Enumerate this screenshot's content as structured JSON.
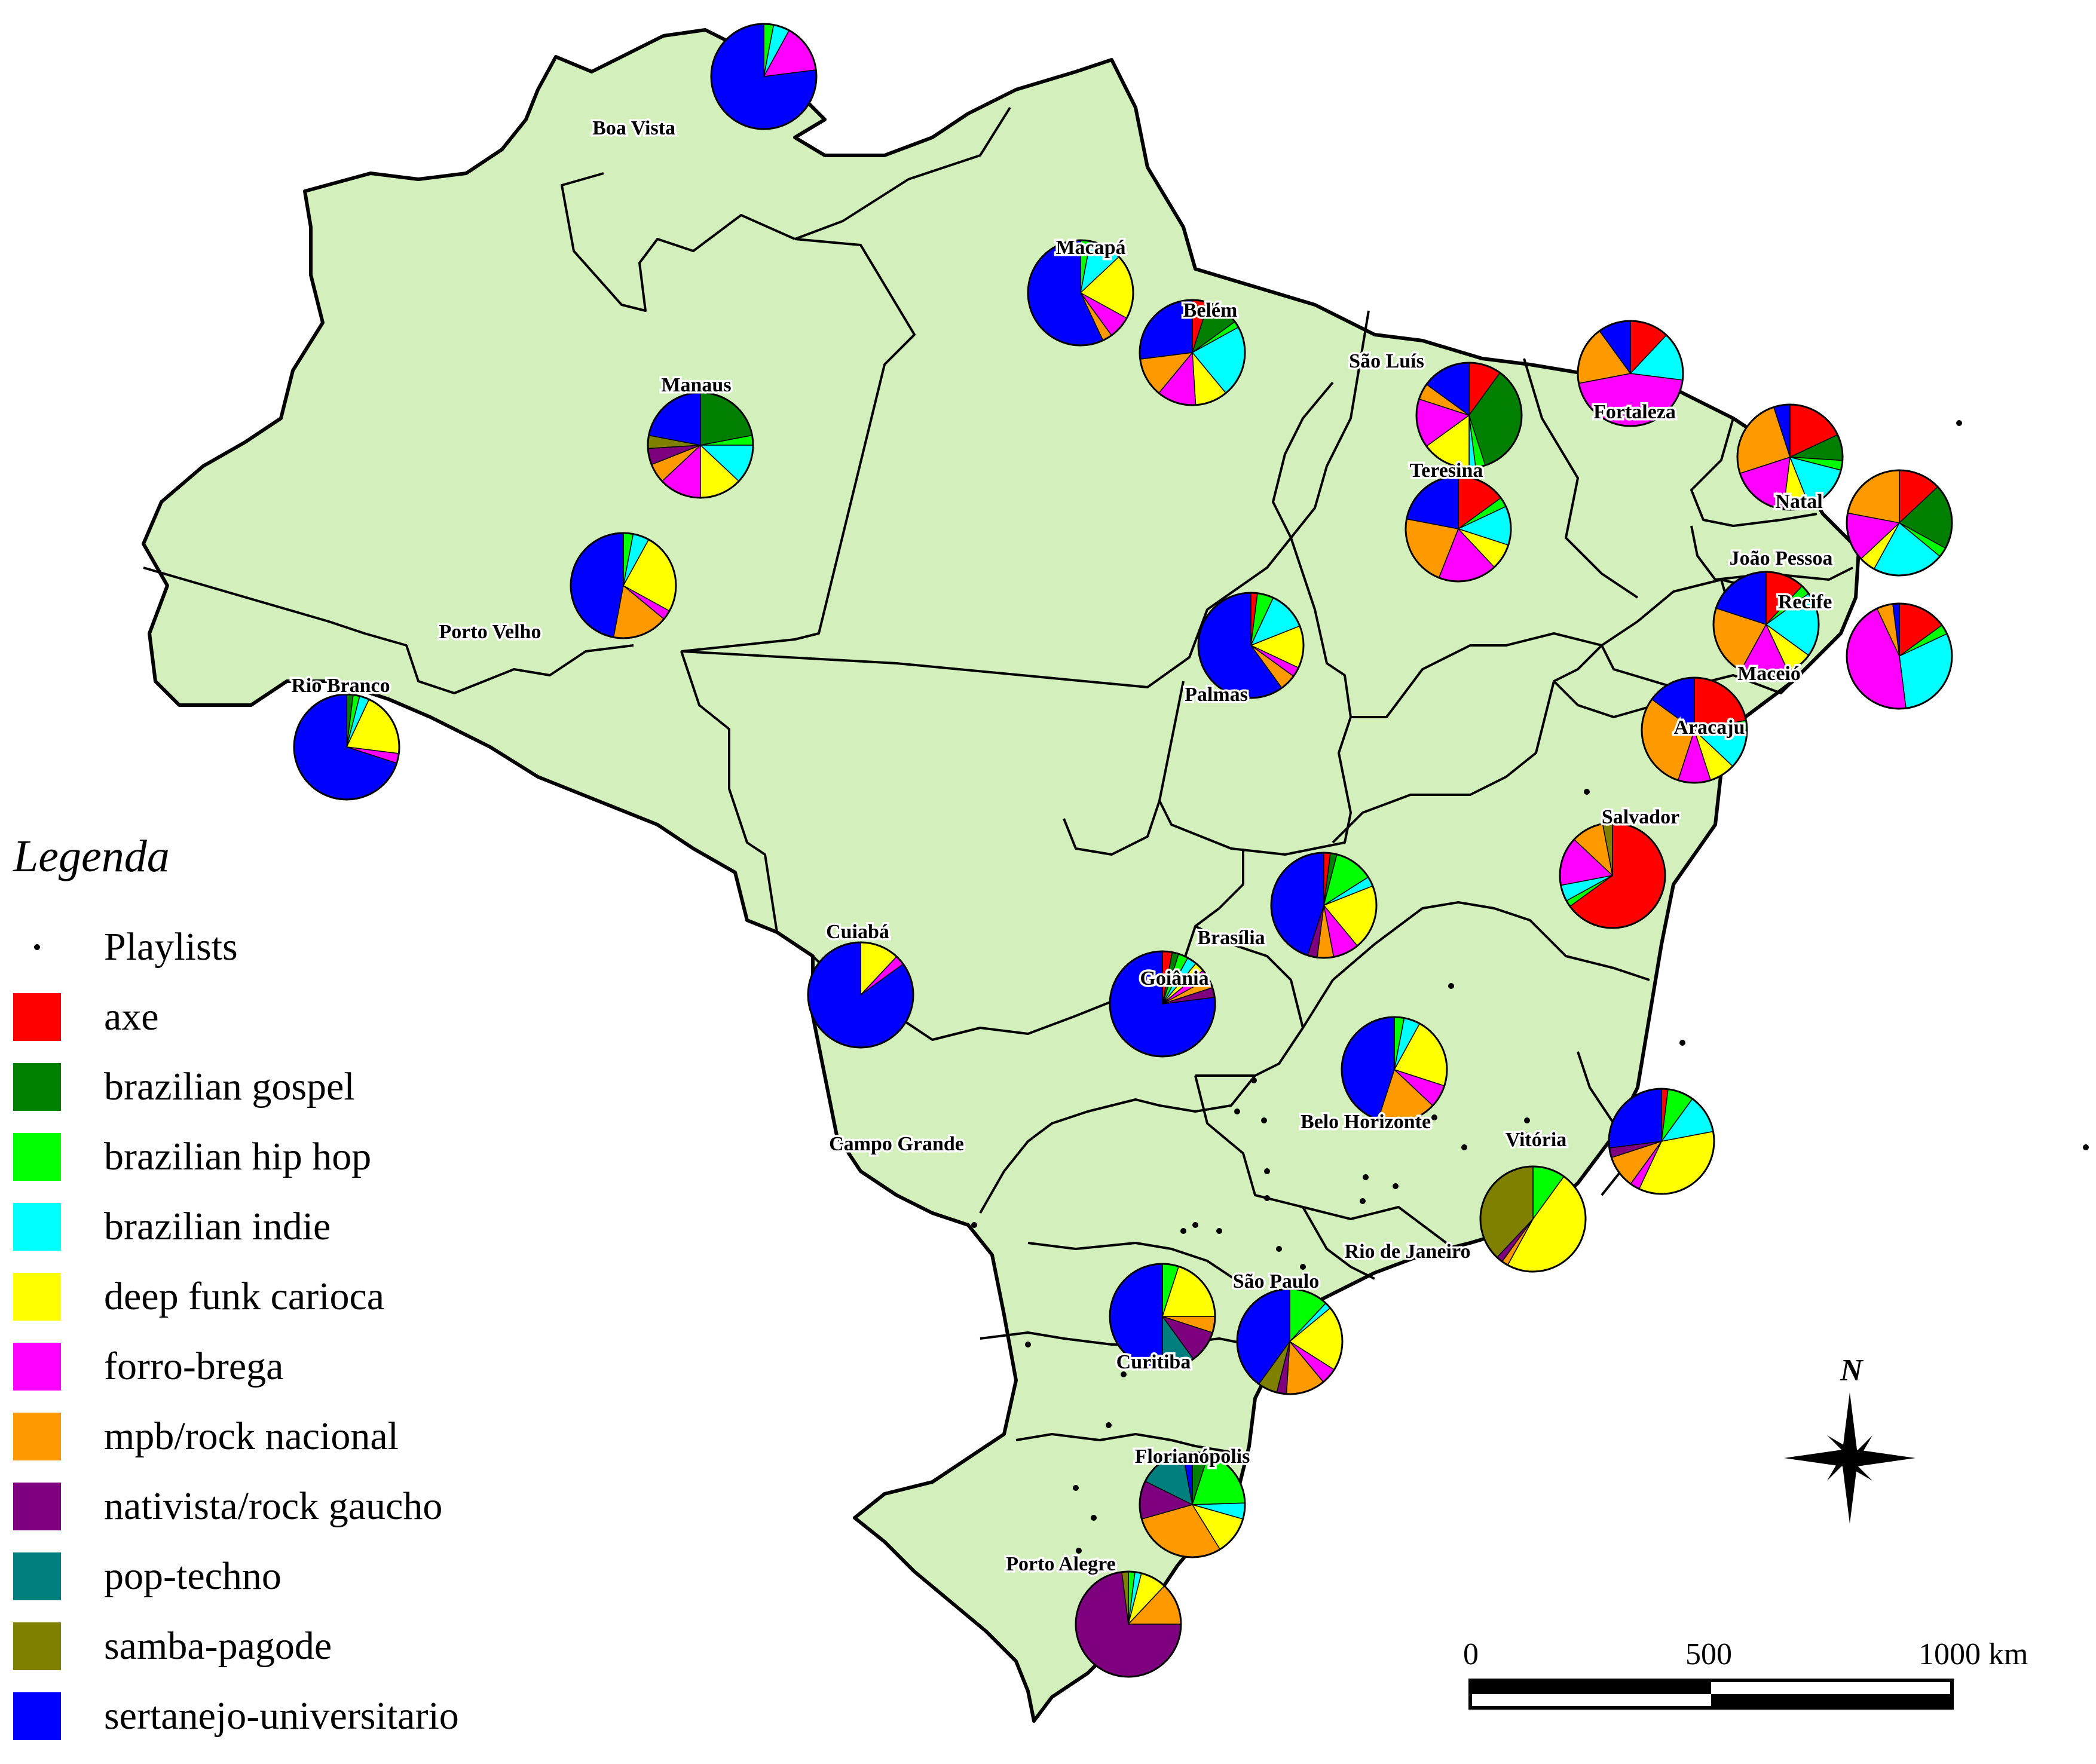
{
  "legend": {
    "title": "Legenda",
    "playlists_label": "Playlists",
    "genres": [
      {
        "name": "axe",
        "color": "#ff0000"
      },
      {
        "name": "brazilian gospel",
        "color": "#007f00"
      },
      {
        "name": "brazilian hip hop",
        "color": "#00ff00"
      },
      {
        "name": "brazilian indie",
        "color": "#00ffff"
      },
      {
        "name": "deep funk carioca",
        "color": "#ffff00"
      },
      {
        "name": "forro-brega",
        "color": "#ff00ff"
      },
      {
        "name": "mpb/rock nacional",
        "color": "#ff9900"
      },
      {
        "name": "nativista/rock gaucho",
        "color": "#7f007f"
      },
      {
        "name": "pop-techno",
        "color": "#007f7f"
      },
      {
        "name": "samba-pagode",
        "color": "#7f7f00"
      },
      {
        "name": "sertanejo-universitario",
        "color": "#0000ff"
      }
    ]
  },
  "cities": [
    {
      "name": "Boa Vista"
    },
    {
      "name": "Macapá"
    },
    {
      "name": "Belém"
    },
    {
      "name": "Manaus"
    },
    {
      "name": "São Luís"
    },
    {
      "name": "Fortaleza"
    },
    {
      "name": "Teresina"
    },
    {
      "name": "Natal"
    },
    {
      "name": "João Pessoa"
    },
    {
      "name": "Recife"
    },
    {
      "name": "Maceió"
    },
    {
      "name": "Aracaju"
    },
    {
      "name": "Porto Velho"
    },
    {
      "name": "Rio Branco"
    },
    {
      "name": "Palmas"
    },
    {
      "name": "Salvador"
    },
    {
      "name": "Cuiabá"
    },
    {
      "name": "Brasília"
    },
    {
      "name": "Goiânia"
    },
    {
      "name": "Belo Horizonte"
    },
    {
      "name": "Campo Grande"
    },
    {
      "name": "Vitória"
    },
    {
      "name": "Rio de Janeiro"
    },
    {
      "name": "São Paulo"
    },
    {
      "name": "Curitiba"
    },
    {
      "name": "Florianópolis"
    },
    {
      "name": "Porto Alegre"
    }
  ],
  "pies": [
    {
      "city": "Boa Vista",
      "shares": [
        0,
        0,
        3,
        5,
        0,
        15,
        0,
        0,
        0,
        0,
        77
      ]
    },
    {
      "city": "Macapá",
      "shares": [
        0,
        0,
        3,
        10,
        20,
        7,
        3,
        0,
        0,
        0,
        57
      ]
    },
    {
      "city": "Belém",
      "shares": [
        5,
        10,
        2,
        22,
        10,
        12,
        12,
        0,
        0,
        0,
        27
      ]
    },
    {
      "city": "Manaus",
      "shares": [
        0,
        22,
        3,
        12,
        13,
        13,
        6,
        5,
        0,
        4,
        22
      ]
    },
    {
      "city": "São Luís",
      "shares": [
        10,
        35,
        3,
        2,
        15,
        15,
        5,
        0,
        0,
        0,
        15
      ]
    },
    {
      "city": "Fortaleza",
      "shares": [
        12,
        0,
        0,
        15,
        0,
        45,
        18,
        0,
        0,
        0,
        10
      ]
    },
    {
      "city": "Teresina",
      "shares": [
        15,
        0,
        3,
        12,
        8,
        18,
        22,
        0,
        0,
        0,
        22
      ]
    },
    {
      "city": "Natal",
      "shares": [
        18,
        8,
        3,
        15,
        8,
        18,
        25,
        0,
        0,
        0,
        5
      ]
    },
    {
      "city": "João Pessoa",
      "shares": [
        13,
        20,
        3,
        22,
        5,
        15,
        22,
        0,
        0,
        0,
        0
      ]
    },
    {
      "city": "Recife",
      "shares": [
        15,
        0,
        3,
        30,
        0,
        45,
        5,
        0,
        0,
        0,
        2
      ]
    },
    {
      "city": "Maceió",
      "shares": [
        12,
        0,
        3,
        20,
        8,
        15,
        22,
        0,
        0,
        0,
        20
      ]
    },
    {
      "city": "Aracaju",
      "shares": [
        22,
        0,
        3,
        12,
        8,
        10,
        30,
        0,
        0,
        0,
        15
      ]
    },
    {
      "city": "Porto Velho",
      "shares": [
        0,
        0,
        3,
        5,
        25,
        3,
        17,
        0,
        0,
        0,
        47
      ]
    },
    {
      "city": "Rio Branco",
      "shares": [
        0,
        2,
        2,
        3,
        20,
        3,
        0,
        0,
        0,
        0,
        70
      ]
    },
    {
      "city": "Palmas",
      "shares": [
        2,
        0,
        5,
        12,
        13,
        3,
        5,
        0,
        0,
        0,
        60
      ]
    },
    {
      "city": "Salvador",
      "shares": [
        65,
        0,
        2,
        5,
        0,
        15,
        10,
        0,
        0,
        3,
        0
      ]
    },
    {
      "city": "Cuiabá",
      "shares": [
        0,
        0,
        0,
        0,
        12,
        3,
        0,
        0,
        0,
        0,
        85
      ]
    },
    {
      "city": "Brasília",
      "shares": [
        2,
        2,
        12,
        3,
        20,
        8,
        5,
        3,
        0,
        0,
        45
      ]
    },
    {
      "city": "Goiânia",
      "shares": [
        3,
        2,
        3,
        3,
        3,
        3,
        3,
        3,
        0,
        0,
        77
      ]
    },
    {
      "city": "Belo Horizonte",
      "shares": [
        0,
        0,
        3,
        5,
        22,
        7,
        18,
        0,
        0,
        0,
        45
      ]
    },
    {
      "city": "Vitória",
      "shares": [
        2,
        0,
        8,
        12,
        35,
        3,
        10,
        3,
        0,
        0,
        27
      ]
    },
    {
      "city": "Rio de Janeiro",
      "shares": [
        0,
        0,
        10,
        0,
        48,
        0,
        2,
        2,
        0,
        38,
        0
      ]
    },
    {
      "city": "São Paulo",
      "shares": [
        0,
        0,
        12,
        2,
        20,
        5,
        12,
        3,
        0,
        6,
        40
      ]
    },
    {
      "city": "Curitiba",
      "shares": [
        0,
        0,
        5,
        0,
        20,
        0,
        5,
        10,
        10,
        0,
        50
      ]
    },
    {
      "city": "Florianópolis",
      "shares": [
        0,
        5,
        20,
        5,
        12,
        0,
        30,
        12,
        15,
        0,
        3
      ]
    },
    {
      "city": "Porto Alegre",
      "shares": [
        0,
        0,
        2,
        2,
        8,
        0,
        13,
        73,
        0,
        2,
        0
      ]
    }
  ],
  "scale_bar": {
    "labels": [
      "0",
      "500",
      "1000 km"
    ]
  },
  "north_arrow": {
    "label": "N"
  }
}
